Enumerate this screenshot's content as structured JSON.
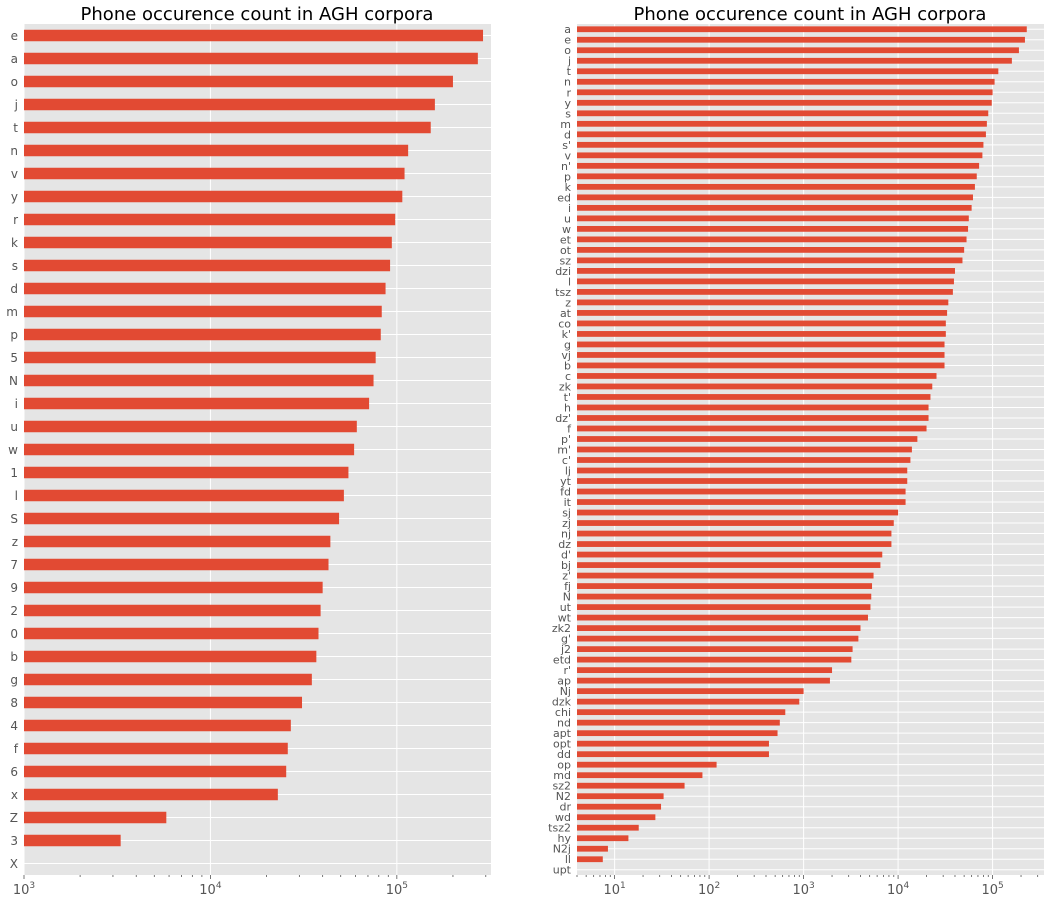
{
  "chart_data": [
    {
      "type": "bar",
      "orientation": "horizontal",
      "title": "Phone occurence count in AGH corpora",
      "xscale": "log",
      "xlim": [
        1000,
        320000
      ],
      "grid": true,
      "xticks": [
        {
          "value": 1000,
          "base": "10",
          "exp": "3"
        },
        {
          "value": 10000,
          "base": "10",
          "exp": "4"
        },
        {
          "value": 100000,
          "base": "10",
          "exp": "5"
        }
      ],
      "categories": [
        "e",
        "a",
        "o",
        "j",
        "t",
        "n",
        "v",
        "y",
        "r",
        "k",
        "s",
        "d",
        "m",
        "p",
        "5",
        "N",
        "i",
        "u",
        "w",
        "1",
        "l",
        "S",
        "z",
        "7",
        "9",
        "2",
        "0",
        "b",
        "g",
        "8",
        "4",
        "f",
        "6",
        "x",
        "Z",
        "3",
        "X"
      ],
      "values": [
        290000,
        272000,
        200000,
        160000,
        152000,
        115000,
        110000,
        107000,
        98000,
        94000,
        92000,
        87000,
        83000,
        82000,
        77000,
        75000,
        71000,
        61000,
        59000,
        55000,
        52000,
        49000,
        44000,
        43000,
        40000,
        39000,
        38000,
        37000,
        35000,
        31000,
        27000,
        26000,
        25500,
        23000,
        5800,
        3300,
        1000
      ]
    },
    {
      "type": "bar",
      "orientation": "horizontal",
      "title": "Phone occurence count in AGH corpora",
      "xscale": "log",
      "xlim": [
        4,
        350000
      ],
      "grid": true,
      "xticks": [
        {
          "value": 10,
          "base": "10",
          "exp": "1"
        },
        {
          "value": 100,
          "base": "10",
          "exp": "2"
        },
        {
          "value": 1000,
          "base": "10",
          "exp": "3"
        },
        {
          "value": 10000,
          "base": "10",
          "exp": "4"
        },
        {
          "value": 100000,
          "base": "10",
          "exp": "5"
        }
      ],
      "categories": [
        "a",
        "e",
        "o",
        "j",
        "t",
        "n",
        "r",
        "y",
        "s",
        "m",
        "d",
        "s'",
        "v",
        "n'",
        "p",
        "k",
        "ed",
        "i",
        "u",
        "w",
        "et",
        "ot",
        "sz",
        "dzi",
        "l",
        "tsz",
        "z",
        "at",
        "co",
        "k'",
        "g",
        "vj",
        "b",
        "c",
        "zk",
        "t'",
        "h",
        "dz'",
        "f",
        "p'",
        "m'",
        "c'",
        "lj",
        "yt",
        "fd",
        "it",
        "sj",
        "zj",
        "nj",
        "dz",
        "d'",
        "bj",
        "z'",
        "fj",
        "N",
        "ut",
        "wt",
        "zk2",
        "g'",
        "j2",
        "etd",
        "r'",
        "ap",
        "Nj",
        "dzk",
        "chi",
        "nd",
        "apt",
        "opt",
        "dd",
        "op",
        "md",
        "sz2",
        "N2",
        "dr",
        "wd",
        "tsz2",
        "hy",
        "N2j",
        "ll",
        "upt"
      ],
      "values": [
        230000,
        220000,
        190000,
        160000,
        115000,
        105000,
        100000,
        98000,
        90000,
        87000,
        85000,
        80000,
        78000,
        72000,
        68000,
        65000,
        62000,
        60000,
        56000,
        55000,
        53000,
        50000,
        48000,
        40000,
        39000,
        38000,
        34000,
        33000,
        32000,
        32000,
        31000,
        31000,
        31000,
        25500,
        23000,
        22000,
        21000,
        21000,
        20000,
        16000,
        14000,
        13500,
        12500,
        12500,
        12000,
        12000,
        10000,
        9000,
        8500,
        8500,
        6800,
        6500,
        5500,
        5300,
        5200,
        5100,
        4800,
        4000,
        3800,
        3300,
        3200,
        2000,
        1900,
        1000,
        900,
        640,
        560,
        530,
        430,
        430,
        120,
        85,
        55,
        33,
        31,
        27,
        18,
        14,
        8.5,
        7.5,
        4
      ]
    }
  ]
}
